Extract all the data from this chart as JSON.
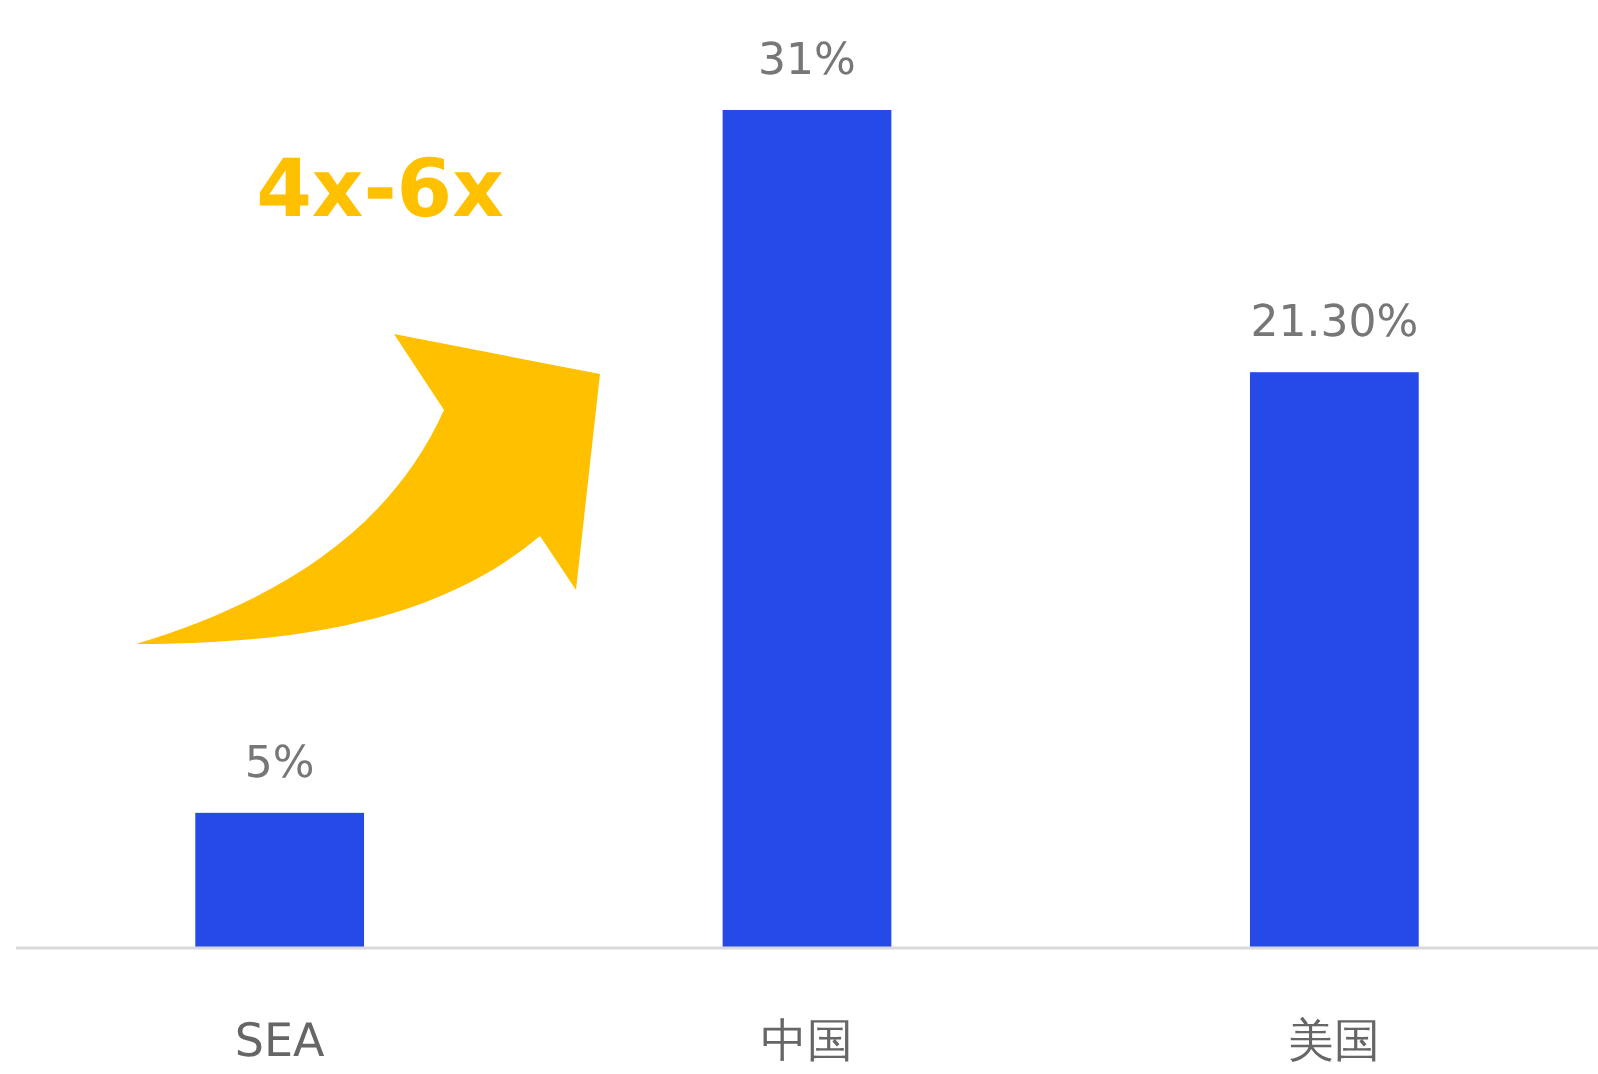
{
  "chart_data": {
    "type": "bar",
    "categories": [
      "SEA",
      "中国",
      "美国"
    ],
    "values": [
      5,
      31,
      21.3
    ],
    "color": "#264ae8",
    "value_labels": [
      "5%",
      "31%",
      "21.30%"
    ],
    "annotations": [
      "4x-6x"
    ],
    "grid": false
  }
}
